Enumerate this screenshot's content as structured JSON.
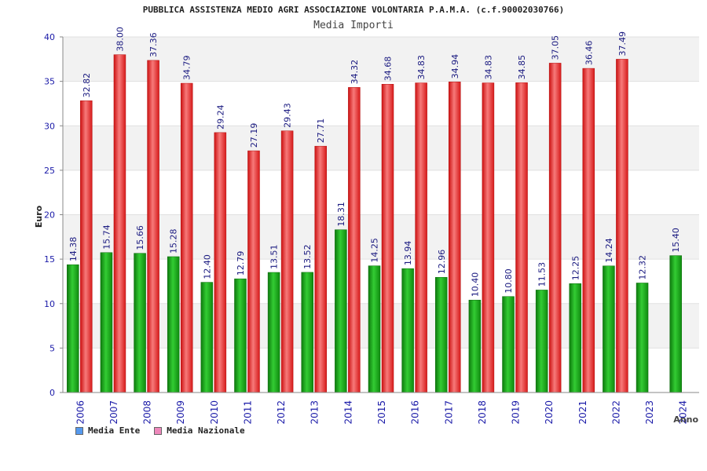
{
  "chart_data": {
    "type": "bar",
    "title": "PUBBLICA ASSISTENZA MEDIO AGRI ASSOCIAZIONE VOLONTARIA P.A.M.A. (c.f.90002030766)",
    "subtitle": "Media Importi",
    "xlabel": "Anno",
    "ylabel": "Euro",
    "ylim": [
      0,
      40
    ],
    "yticks": [
      "0",
      "5",
      "10",
      "15",
      "20",
      "25",
      "30",
      "35",
      "40"
    ],
    "categories": [
      "2006",
      "2007",
      "2008",
      "2009",
      "2010",
      "2011",
      "2012",
      "2013",
      "2014",
      "2015",
      "2016",
      "2017",
      "2018",
      "2019",
      "2020",
      "2021",
      "2022",
      "2023",
      "2024"
    ],
    "series": [
      {
        "name": "Media Ente",
        "color": "#22aa22",
        "values": [
          14.38,
          15.74,
          15.66,
          15.28,
          12.4,
          12.79,
          13.51,
          13.52,
          18.31,
          14.25,
          13.94,
          12.96,
          10.4,
          10.8,
          11.53,
          12.25,
          14.24,
          12.32,
          15.4
        ],
        "labels": [
          "14.38",
          "15.74",
          "15.66",
          "15.28",
          "12.40",
          "12.79",
          "13.51",
          "13.52",
          "18.31",
          "14.25",
          "13.94",
          "12.96",
          "10.40",
          "10.80",
          "11.53",
          "12.25",
          "14.24",
          "12.32",
          "15.40"
        ]
      },
      {
        "name": "Media Nazionale",
        "color": "#ee3333",
        "values": [
          32.82,
          38.0,
          37.36,
          34.79,
          29.24,
          27.19,
          29.43,
          27.71,
          34.32,
          34.68,
          34.83,
          34.94,
          34.83,
          34.85,
          37.05,
          36.46,
          37.49,
          null,
          null
        ],
        "labels": [
          "32.82",
          "38.00",
          "37.36",
          "34.79",
          "29.24",
          "27.19",
          "29.43",
          "27.71",
          "34.32",
          "34.68",
          "34.83",
          "34.94",
          "34.83",
          "34.85",
          "37.05",
          "36.46",
          "37.49",
          "",
          ""
        ]
      }
    ],
    "legend": {
      "placement": "bottom-left",
      "entries": [
        {
          "label": "Media Ente",
          "color": "#5599ee"
        },
        {
          "label": "Media Nazionale",
          "color": "#ee88bb"
        }
      ]
    },
    "grid": true
  }
}
